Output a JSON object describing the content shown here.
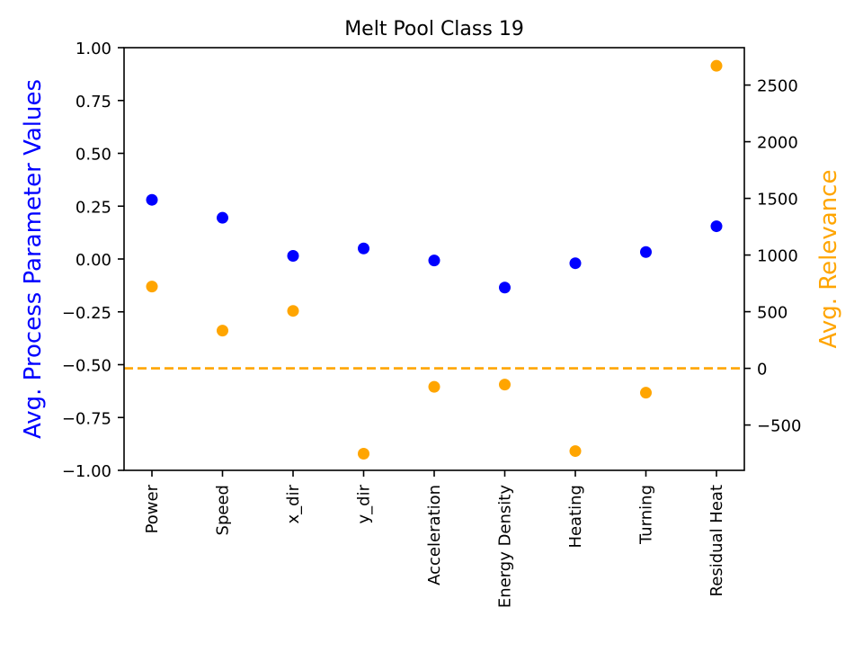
{
  "chart_data": {
    "type": "scatter",
    "title": "Melt Pool Class 19",
    "categories": [
      "Power",
      "Speed",
      "x_dir",
      "y_dir",
      "Acceleration",
      "Energy Density",
      "Heating",
      "Turning",
      "Residual Heat"
    ],
    "y_left": {
      "label": "Avg. Process Parameter Values",
      "color": "#0000ff",
      "ylim": [
        -1.0,
        1.0
      ],
      "ticks": [
        -1.0,
        -0.75,
        -0.5,
        -0.25,
        0.0,
        0.25,
        0.5,
        0.75,
        1.0
      ],
      "tick_labels": [
        "−1.00",
        "−0.75",
        "−0.50",
        "−0.25",
        "0.00",
        "0.25",
        "0.50",
        "0.75",
        "1.00"
      ]
    },
    "y_right": {
      "label": "Avg. Relevance",
      "color": "#ffa500",
      "ylim": [
        -900,
        2830
      ],
      "ticks": [
        -500,
        0,
        500,
        1000,
        1500,
        2000,
        2500
      ],
      "tick_labels": [
        "−500",
        "0",
        "500",
        "1000",
        "1500",
        "2000",
        "2500"
      ]
    },
    "series": [
      {
        "axis": "left",
        "color": "#0000ff",
        "values": [
          0.28,
          0.195,
          0.015,
          0.05,
          -0.007,
          -0.135,
          -0.02,
          0.033,
          0.155
        ]
      },
      {
        "axis": "right",
        "color": "#ffa500",
        "values": [
          722,
          333,
          507,
          -753,
          -163,
          -143,
          -730,
          -215,
          2670
        ]
      }
    ],
    "reference_line": {
      "axis": "right",
      "value": 0,
      "style": "dashed",
      "color": "#ffa500"
    },
    "grid": false
  }
}
